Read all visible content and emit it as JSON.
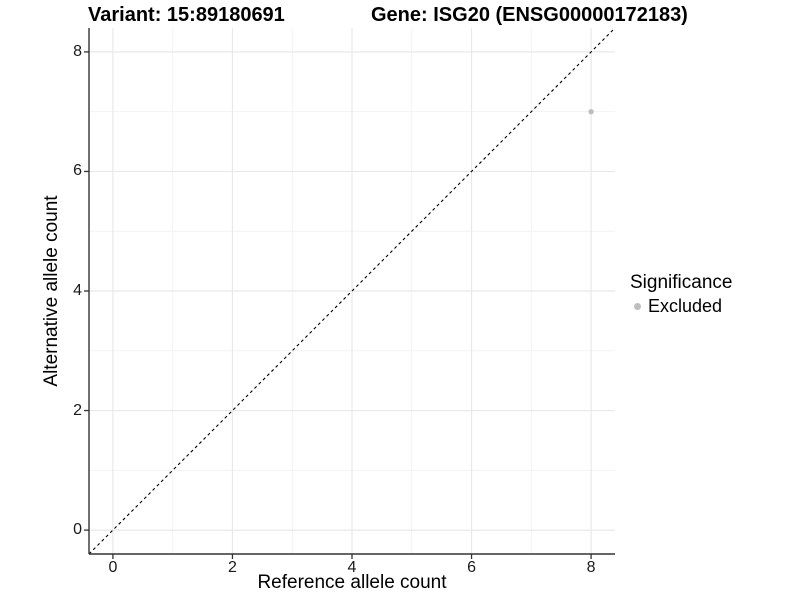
{
  "chart_data": {
    "type": "scatter",
    "titles": {
      "variant": "Variant: 15:89180691",
      "gene": "Gene: ISG20 (ENSG00000172183)"
    },
    "xlabel": "Reference allele count",
    "ylabel": "Alternative allele count",
    "xlim": [
      0,
      8
    ],
    "ylim": [
      0,
      8
    ],
    "xticks": [
      0,
      2,
      4,
      6,
      8
    ],
    "yticks": [
      0,
      2,
      4,
      6,
      8
    ],
    "x_minor_ticks": [
      1,
      3,
      5,
      7
    ],
    "y_minor_ticks": [
      1,
      3,
      5,
      7
    ],
    "expansion_fraction": 0.05,
    "grid": "major+minor",
    "points": [
      {
        "x": 8,
        "y": 7,
        "significance": "Excluded",
        "color": "#bebebe"
      }
    ],
    "identity_line": {
      "slope": 1,
      "intercept": 0,
      "style": "dashed",
      "color": "#000000"
    },
    "legend": {
      "title": "Significance",
      "position": "right",
      "items": [
        {
          "label": "Excluded",
          "color": "#bebebe"
        }
      ]
    },
    "colors": {
      "grid_major": "#e8e8e8",
      "grid_minor": "#f3f3f3",
      "axis_line": "#333333",
      "tick_mark": "#333333",
      "text": "#000000",
      "background": "#ffffff"
    }
  }
}
